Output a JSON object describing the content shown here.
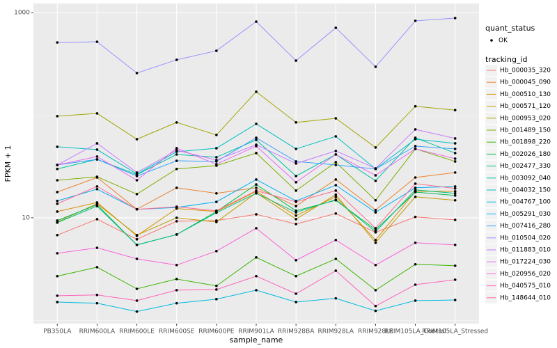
{
  "chart_data": {
    "type": "line",
    "x_label": "sample_name",
    "y_label": "FPKM + 1",
    "log_y": true,
    "grid": true,
    "ylim": [
      0.93,
      1225
    ],
    "yticks": [
      10,
      1000
    ],
    "y_minor_grid": [
      1,
      100
    ],
    "categories": [
      "PB350LA",
      "RRIM600LA",
      "RRIM600LE",
      "RRIM600SE",
      "RRIM600PE",
      "RRIM901LA",
      "RRIM928BA",
      "RRIM928LA",
      "RRIM928LE",
      "RRIM105LA_Control",
      "RRIM105LA_Stressed"
    ],
    "point_legend_title": "quant_status",
    "point_legend_label": "OK",
    "point_color": "#000000",
    "legend_title": "tracking_id",
    "legend_position": "right",
    "series": [
      {
        "name": "Hb_000035_320",
        "color": "#F8766D",
        "values": [
          6.78,
          9.69,
          6.17,
          9.25,
          9.4,
          10.8,
          8.69,
          11.0,
          7.21,
          10.2,
          9.54
        ]
      },
      {
        "name": "Hb_000045_090",
        "color": "#EA8331",
        "values": [
          17.8,
          24.7,
          12.1,
          19.6,
          17.3,
          19.6,
          13.0,
          23.6,
          11.9,
          24.7,
          27.6
        ]
      },
      {
        "name": "Hb_000510_130",
        "color": "#D89000",
        "values": [
          11.5,
          14.1,
          6.67,
          12.3,
          11.5,
          18.1,
          10.5,
          16.0,
          6.07,
          18.1,
          18.1
        ]
      },
      {
        "name": "Hb_000571_120",
        "color": "#C09B00",
        "values": [
          9.1,
          13.7,
          6.78,
          10.0,
          9.1,
          17.5,
          9.69,
          16.8,
          5.71,
          16.0,
          14.8
        ]
      },
      {
        "name": "Hb_000953_020",
        "color": "#A3A500",
        "values": [
          97.8,
          104,
          58.3,
          84.9,
          64.1,
          169,
          85,
          93.1,
          48.4,
          122,
          112
        ]
      },
      {
        "name": "Hb_001489_150",
        "color": "#7CAE00",
        "values": [
          23.2,
          25.1,
          17.0,
          29.9,
          32.2,
          42.7,
          18.4,
          34.8,
          14.8,
          46.9,
          35.4
        ]
      },
      {
        "name": "Hb_001898_220",
        "color": "#39B600",
        "values": [
          2.7,
          3.3,
          2.03,
          2.53,
          2.17,
          4.11,
          2.7,
          3.98,
          1.97,
          3.52,
          3.41
        ]
      },
      {
        "name": "Hb_002026_180",
        "color": "#00BB4E",
        "values": [
          9.4,
          13.4,
          5.44,
          6.87,
          11.5,
          21.1,
          11.7,
          14.8,
          7.67,
          17.8,
          16.5
        ]
      },
      {
        "name": "Hb_002477_330",
        "color": "#00BF7D",
        "values": [
          8.97,
          13.0,
          5.44,
          6.87,
          11.2,
          17.3,
          11.3,
          15.0,
          7.31,
          18.7,
          17.3
        ]
      },
      {
        "name": "Hb_003092_040",
        "color": "#00C1A3",
        "values": [
          29.9,
          37.1,
          26.3,
          41.4,
          38.9,
          57.4,
          25.5,
          41.4,
          22.9,
          60.2,
          42.7
        ]
      },
      {
        "name": "Hb_004032_150",
        "color": "#00BFC4",
        "values": [
          49.2,
          46.2,
          26.7,
          44.0,
          47.6,
          82.3,
          46.9,
          62.1,
          29.9,
          58.3,
          53.1
        ]
      },
      {
        "name": "Hb_004767_100",
        "color": "#00BAE0",
        "values": [
          1.51,
          1.47,
          1.22,
          1.47,
          1.61,
          1.97,
          1.51,
          1.64,
          1.24,
          1.56,
          1.58
        ]
      },
      {
        "name": "Hb_005291_030",
        "color": "#00B0F6",
        "values": [
          14.6,
          19.0,
          12.1,
          12.6,
          14.3,
          23.6,
          14.6,
          20.8,
          11.3,
          19.6,
          20.2
        ]
      },
      {
        "name": "Hb_007416_280",
        "color": "#35A2FF",
        "values": [
          32.7,
          37.1,
          25.5,
          35.9,
          35.4,
          60.2,
          35.4,
          32.7,
          29.9,
          49.9,
          46.9
        ]
      },
      {
        "name": "Hb_010504_020",
        "color": "#9590FF",
        "values": [
          511,
          519,
          257,
          346,
          424,
          816,
          340,
          710,
          296,
          830,
          883
        ]
      },
      {
        "name": "Hb_011883_010",
        "color": "#C77CFF",
        "values": [
          32.7,
          53.1,
          27.6,
          45.5,
          36.5,
          51.5,
          33.8,
          44.8,
          30.3,
          72.6,
          59.3
        ]
      },
      {
        "name": "Hb_017224_030",
        "color": "#E76BF3",
        "values": [
          32.7,
          39.5,
          23.2,
          47.6,
          33.3,
          49.9,
          22.2,
          41.4,
          25.9,
          46.9,
          37.7
        ]
      },
      {
        "name": "Hb_020956_020",
        "color": "#FA62DB",
        "values": [
          4.51,
          5.1,
          3.98,
          3.46,
          4.73,
          7.91,
          3.86,
          6.07,
          3.46,
          5.71,
          5.44
        ]
      },
      {
        "name": "Hb_040575_010",
        "color": "#FF62BC",
        "values": [
          1.74,
          1.77,
          1.56,
          1.97,
          2.0,
          2.7,
          1.82,
          3.05,
          1.38,
          2.23,
          2.49
        ]
      },
      {
        "name": "Hb_148644_010",
        "color": "#FF6C91",
        "values": [
          13.7,
          20.2,
          12.1,
          12.8,
          11.7,
          18.4,
          14.3,
          18.4,
          7.91,
          21.5,
          19.3
        ]
      }
    ]
  }
}
